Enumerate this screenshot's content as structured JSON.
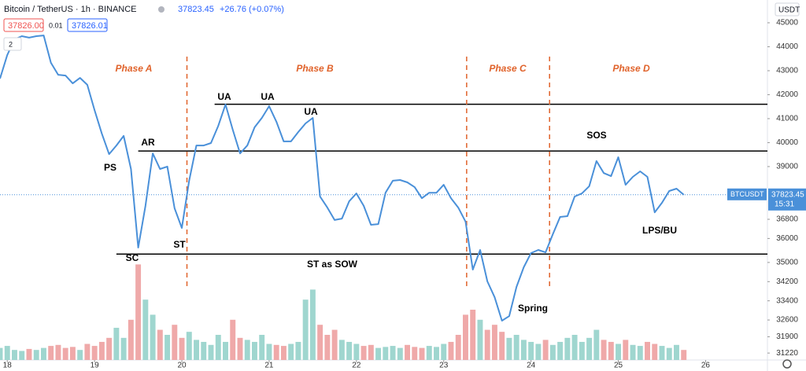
{
  "header": {
    "symbol": "Bitcoin / TetherUS · 1h · BINANCE",
    "change": "+26.76 (+0.07%)",
    "bid": "37826.00",
    "spread": "0.01",
    "ask": "37826.01",
    "indicators": "2",
    "currency": "USDT",
    "time": "15:31"
  },
  "chart_data": {
    "type": "line",
    "xlim": [
      -2,
      209
    ],
    "xticks": [
      {
        "value": 0,
        "label": "18"
      },
      {
        "value": 24,
        "label": "19"
      },
      {
        "value": 48,
        "label": "20"
      },
      {
        "value": 72,
        "label": "21"
      },
      {
        "value": 96,
        "label": "22"
      },
      {
        "value": 120,
        "label": "23"
      },
      {
        "value": 144,
        "label": "24"
      },
      {
        "value": 168,
        "label": "25"
      },
      {
        "value": 192,
        "label": "26"
      }
    ],
    "ylim": [
      30930,
      45950
    ],
    "yticks": [
      31220,
      31900,
      32600,
      33400,
      34200,
      35000,
      36000,
      36800,
      39000,
      40000,
      41000,
      42000,
      43000,
      44000,
      45000
    ],
    "y2lim": [
      0,
      100
    ],
    "series": [
      {
        "name": "BTCUSDT",
        "color": "#4a90d9",
        "x": [
          -2,
          0,
          2,
          4,
          6,
          8,
          10,
          12,
          14,
          16,
          18,
          20,
          22,
          24,
          26,
          28,
          30,
          32,
          34,
          36,
          38,
          40,
          42,
          44,
          46,
          48,
          50,
          52,
          54,
          56,
          58,
          60,
          62,
          64,
          66,
          68,
          70,
          72,
          74,
          76,
          78,
          80,
          82,
          84,
          86,
          88,
          90,
          92,
          94,
          96,
          98,
          100,
          102,
          104,
          106,
          108,
          110,
          112,
          114,
          116,
          118,
          120,
          122,
          124,
          126,
          128,
          130,
          132,
          134,
          136,
          138,
          140,
          142,
          144,
          146,
          148,
          150,
          152,
          154,
          156,
          158,
          160,
          162,
          164,
          166,
          168,
          170,
          172,
          174,
          176,
          178,
          180,
          182,
          184,
          186
        ],
        "values": [
          42670,
          43650,
          44310,
          44440,
          44380,
          44440,
          44470,
          43330,
          42830,
          42800,
          42470,
          42700,
          42410,
          41360,
          40370,
          39520,
          39880,
          40280,
          38900,
          35620,
          37360,
          39550,
          38900,
          39000,
          37260,
          36440,
          38410,
          39880,
          39880,
          39980,
          40700,
          41590,
          40540,
          39550,
          39880,
          40640,
          41030,
          41520,
          40870,
          40050,
          40050,
          40440,
          40800,
          41030,
          37750,
          37290,
          36770,
          36830,
          37550,
          37880,
          37360,
          36570,
          36600,
          37910,
          38410,
          38440,
          38340,
          38140,
          37680,
          37910,
          37910,
          38240,
          37680,
          37290,
          36700,
          34700,
          35520,
          34210,
          33550,
          32570,
          32760,
          33980,
          34800,
          35390,
          35520,
          35420,
          36180,
          36900,
          36930,
          37750,
          37880,
          38180,
          39230,
          38730,
          38600,
          39390,
          38240,
          38570,
          38800,
          38570,
          37090,
          37490,
          37980,
          38080,
          37823.45
        ]
      },
      {
        "type": "bar",
        "axis": "y2",
        "up_color": "#9fd6cf",
        "down_color": "#efa9a9",
        "x": [
          -2,
          0,
          2,
          4,
          6,
          8,
          10,
          12,
          14,
          16,
          18,
          20,
          22,
          24,
          26,
          28,
          30,
          32,
          34,
          36,
          38,
          40,
          42,
          44,
          46,
          48,
          50,
          52,
          54,
          56,
          58,
          60,
          62,
          64,
          66,
          68,
          70,
          72,
          74,
          76,
          78,
          80,
          82,
          84,
          86,
          88,
          90,
          92,
          94,
          96,
          98,
          100,
          102,
          104,
          106,
          108,
          110,
          112,
          114,
          116,
          118,
          120,
          122,
          124,
          126,
          128,
          130,
          132,
          134,
          136,
          138,
          140,
          142,
          144,
          146,
          148,
          150,
          152,
          154,
          156,
          158,
          160,
          162,
          164,
          166,
          168,
          170,
          172,
          174,
          176,
          178,
          180,
          182,
          184,
          186
        ],
        "values": [
          12,
          14,
          10,
          9,
          11,
          10,
          12,
          14,
          15,
          12,
          13,
          10,
          16,
          14,
          18,
          22,
          32,
          22,
          40,
          95,
          60,
          45,
          30,
          25,
          35,
          22,
          28,
          20,
          18,
          15,
          25,
          18,
          40,
          22,
          20,
          18,
          25,
          16,
          15,
          14,
          16,
          18,
          60,
          70,
          35,
          25,
          30,
          20,
          18,
          16,
          14,
          15,
          12,
          13,
          14,
          12,
          15,
          13,
          12,
          14,
          13,
          16,
          18,
          25,
          45,
          50,
          40,
          30,
          35,
          28,
          22,
          25,
          20,
          18,
          16,
          20,
          15,
          18,
          22,
          25,
          18,
          22,
          30,
          20,
          18,
          16,
          20,
          15,
          14,
          18,
          16,
          14,
          12,
          15,
          10
        ]
      }
    ],
    "levels": [
      {
        "value": 41600,
        "x0": 57
      },
      {
        "value": 39650,
        "x0": 36
      },
      {
        "value": 35350,
        "x0": 30
      }
    ],
    "dividers": [
      49.4,
      126.3,
      149.1
    ],
    "phases": [
      "Phase A",
      "Phase B",
      "Phase C",
      "Phase D"
    ],
    "annotations": [
      "PS",
      "AR",
      "SC",
      "ST",
      "UA",
      "UA",
      "UA",
      "ST as SOW",
      "Spring",
      "SOS",
      "LPS/BU"
    ]
  }
}
